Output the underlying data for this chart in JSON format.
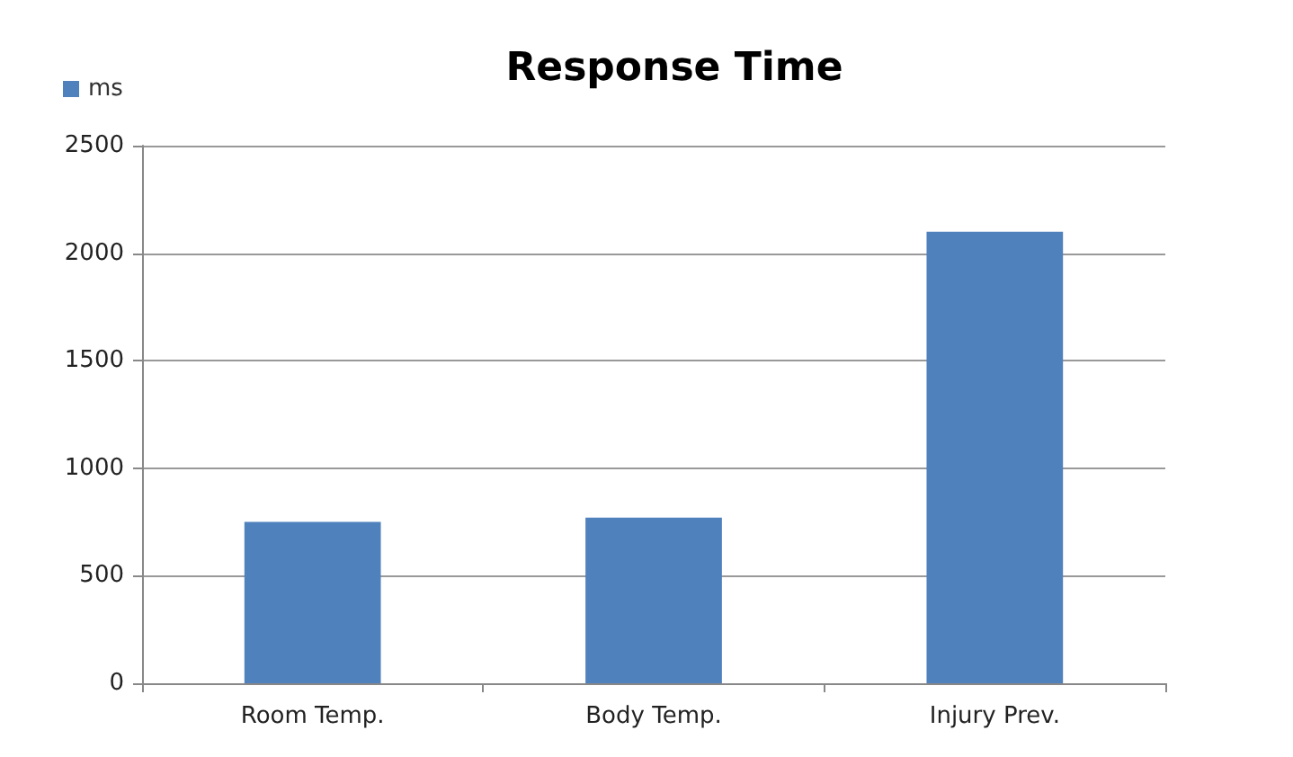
{
  "chart_data": {
    "type": "bar",
    "title": "Response Time",
    "categories": [
      "Room Temp.",
      "Body Temp.",
      "Injury Prev."
    ],
    "series": [
      {
        "name": "ms",
        "color": "#4f81bd",
        "values": [
          750,
          770,
          2100
        ]
      }
    ],
    "ylim": [
      0,
      2500
    ],
    "yticks": [
      0,
      500,
      1000,
      1500,
      2000,
      2500
    ],
    "grid": "y",
    "legend": "top left"
  }
}
